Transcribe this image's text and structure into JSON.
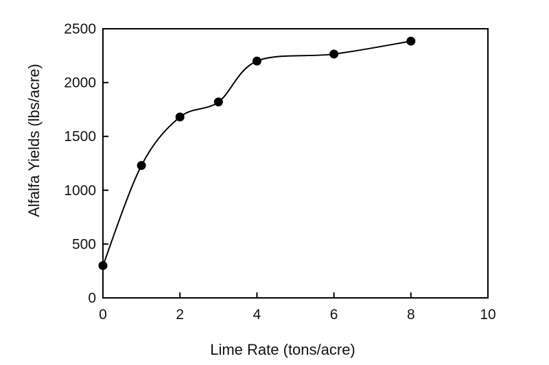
{
  "chart_data": {
    "type": "line",
    "title": "",
    "xlabel": "Lime Rate (tons/acre)",
    "ylabel": "Alfalfa Yields (lbs/acre)",
    "xlim": [
      0,
      10
    ],
    "ylim": [
      0,
      2500
    ],
    "x_ticks": [
      "0",
      "2",
      "4",
      "6",
      "8",
      "10"
    ],
    "y_ticks": [
      "0",
      "500",
      "1000",
      "1500",
      "2000",
      "2500"
    ],
    "grid": false,
    "legend": "none",
    "line_color": "#000000",
    "marker_color": "#000000",
    "series": [
      {
        "x": [
          0,
          1,
          2,
          3,
          4,
          6,
          8
        ],
        "y": [
          300,
          1230,
          1680,
          1820,
          2200,
          2265,
          2385
        ]
      }
    ]
  }
}
